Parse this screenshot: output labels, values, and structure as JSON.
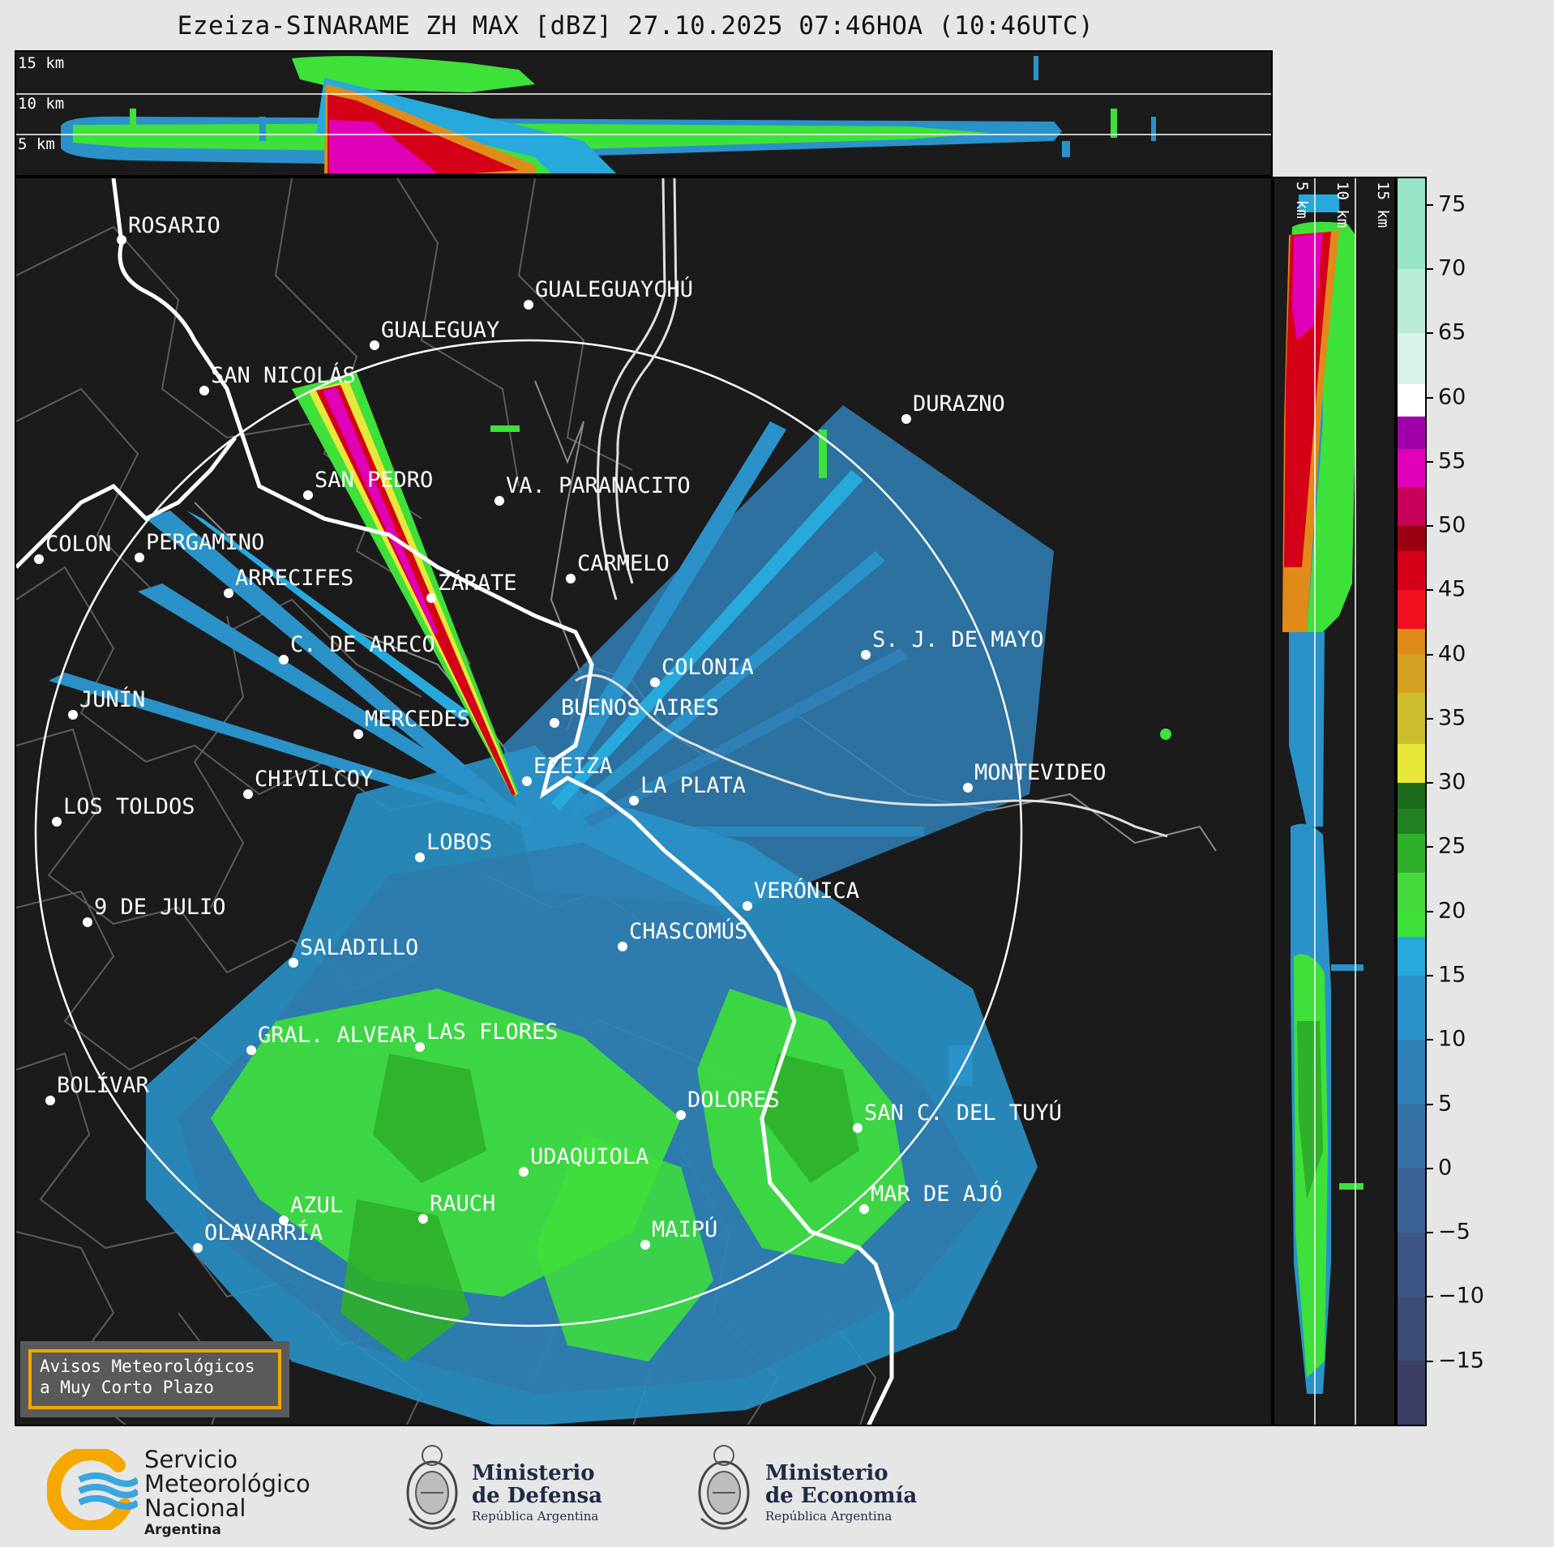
{
  "title": "Ezeiza-SINARAME ZH MAX [dBZ] 27.10.2025 07:46HOA (10:46UTC)",
  "top_panel": {
    "labels": [
      "15 km",
      "10 km",
      "5 km"
    ]
  },
  "side_panel": {
    "labels": [
      "5 km",
      "10 km",
      "15 km"
    ]
  },
  "colorbar": {
    "ticks": [
      "75",
      "70",
      "65",
      "60",
      "55",
      "50",
      "45",
      "40",
      "35",
      "30",
      "25",
      "20",
      "15",
      "10",
      "5",
      "0",
      "−5",
      "−10",
      "−15"
    ],
    "range": [
      -20,
      77
    ],
    "stops": [
      {
        "from": -20,
        "color": "#3b3f66"
      },
      {
        "from": -15,
        "color": "#3d4c77"
      },
      {
        "from": -10,
        "color": "#3d5585"
      },
      {
        "from": -5,
        "color": "#3a6294"
      },
      {
        "from": 0,
        "color": "#3470a3"
      },
      {
        "from": 5,
        "color": "#2f80b6"
      },
      {
        "from": 10,
        "color": "#2a92c8"
      },
      {
        "from": 15,
        "color": "#27a9dc"
      },
      {
        "from": 18,
        "color": "#3ee03a"
      },
      {
        "from": 20,
        "color": "#45d83a"
      },
      {
        "from": 23,
        "color": "#2fb02a"
      },
      {
        "from": 26,
        "color": "#238022"
      },
      {
        "from": 28,
        "color": "#1c6a1c"
      },
      {
        "from": 30,
        "color": "#e8e83a"
      },
      {
        "from": 33,
        "color": "#cdbd2e"
      },
      {
        "from": 37,
        "color": "#d4a020"
      },
      {
        "from": 40,
        "color": "#e08a1a"
      },
      {
        "from": 42,
        "color": "#f01020"
      },
      {
        "from": 45,
        "color": "#d40018"
      },
      {
        "from": 48,
        "color": "#9a0010"
      },
      {
        "from": 50,
        "color": "#c8005a"
      },
      {
        "from": 53,
        "color": "#e000b8"
      },
      {
        "from": 56,
        "color": "#a000a8"
      },
      {
        "from": 58.5,
        "color": "#ffffff"
      },
      {
        "from": 61,
        "color": "#d8f4e8"
      },
      {
        "from": 65,
        "color": "#b8ecd6"
      },
      {
        "from": 70,
        "color": "#98e4c6"
      }
    ]
  },
  "cities": [
    {
      "name": "ROSARIO"
    },
    {
      "name": "GUALEGUAYCHÚ"
    },
    {
      "name": "GUALEGUAY"
    },
    {
      "name": "SAN NICOLÁS"
    },
    {
      "name": "DURAZNO"
    },
    {
      "name": "SAN PEDRO"
    },
    {
      "name": "VA. PARANACITO"
    },
    {
      "name": "COLON"
    },
    {
      "name": "PERGAMINO"
    },
    {
      "name": "CARMELO"
    },
    {
      "name": "ARRECIFES"
    },
    {
      "name": "ZÁRATE"
    },
    {
      "name": "S. J. DE MAYO"
    },
    {
      "name": "C. DE ARECO"
    },
    {
      "name": "COLONIA"
    },
    {
      "name": "JUNÍN"
    },
    {
      "name": "BUENOS AIRES"
    },
    {
      "name": "MERCEDES"
    },
    {
      "name": "MONTEVIDEO"
    },
    {
      "name": "EZEIZA"
    },
    {
      "name": "CHIVILCOY"
    },
    {
      "name": "LA PLATA"
    },
    {
      "name": "LOS TOLDOS"
    },
    {
      "name": "LOBOS"
    },
    {
      "name": "VERÓNICA"
    },
    {
      "name": "9 DE JULIO"
    },
    {
      "name": "CHASCOMÚS"
    },
    {
      "name": "SALADILLO"
    },
    {
      "name": "GRAL. ALVEAR"
    },
    {
      "name": "LAS FLORES"
    },
    {
      "name": "BOLÍVAR"
    },
    {
      "name": "DOLORES"
    },
    {
      "name": "SAN C. DEL TUYÚ"
    },
    {
      "name": "UDAQUIOLA"
    },
    {
      "name": "RAUCH"
    },
    {
      "name": "MAR DE AJÓ"
    },
    {
      "name": "AZUL"
    },
    {
      "name": "MAIPÚ"
    },
    {
      "name": "OLAVARRÍA"
    }
  ],
  "aviso": {
    "line1": "Avisos Meteorológicos",
    "line2": "a Muy Corto Plazo"
  },
  "logos": {
    "smn": {
      "line1": "Servicio",
      "line2": "Meteorológico",
      "line3": "Nacional",
      "sub": "Argentina",
      "colors": {
        "ring": "#f5a800",
        "waves": "#3aa6de"
      }
    },
    "defensa": {
      "line1": "Ministerio",
      "line2": "de Defensa",
      "sub": "República Argentina"
    },
    "economia": {
      "line1": "Ministerio",
      "line2": "de Economía",
      "sub": "República Argentina"
    }
  }
}
